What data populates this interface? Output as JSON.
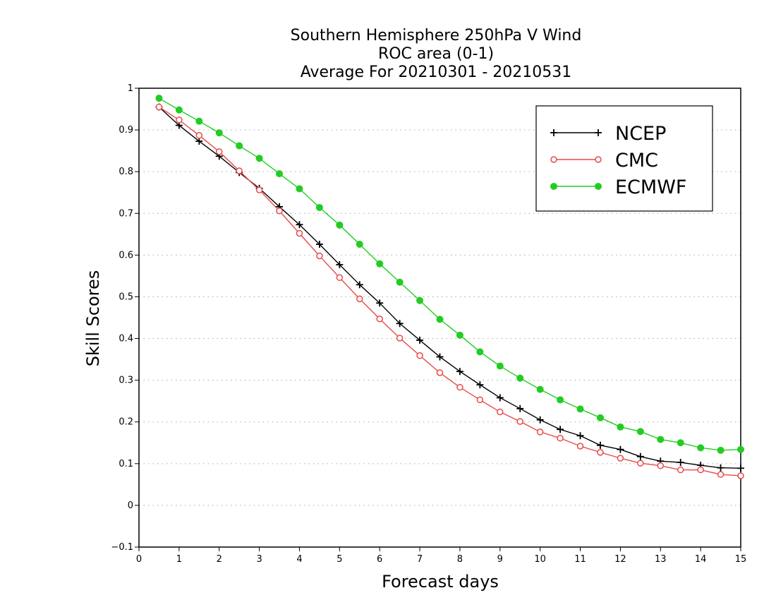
{
  "chart_data": {
    "type": "line",
    "title": [
      "Southern Hemisphere 250hPa V Wind",
      "ROC area (0-1)",
      "Average For 20210301 - 20210531"
    ],
    "xlabel": "Forecast days",
    "ylabel": "Skill Scores",
    "xlim": [
      0,
      15
    ],
    "ylim": [
      -0.1,
      1
    ],
    "x_ticks": [
      "0",
      "1",
      "2",
      "3",
      "4",
      "5",
      "6",
      "7",
      "8",
      "9",
      "10",
      "11",
      "12",
      "13",
      "14",
      "15"
    ],
    "y_ticks": [
      "−0.1",
      "0",
      "0.1",
      "0.2",
      "0.3",
      "0.4",
      "0.5",
      "0.6",
      "0.7",
      "0.8",
      "0.9",
      "1"
    ],
    "grid": "horizontal dotted",
    "legend_position": "top-right",
    "x": [
      0.5,
      1,
      1.5,
      2,
      2.5,
      3,
      3.5,
      4,
      4.5,
      5,
      5.5,
      6,
      6.5,
      7,
      7.5,
      8,
      8.5,
      9,
      9.5,
      10,
      10.5,
      11,
      11.5,
      12,
      12.5,
      13,
      13.5,
      14,
      14.5,
      15
    ],
    "series": [
      {
        "name": "NCEP",
        "color": "#000000",
        "marker": "plus",
        "values": [
          0.955,
          0.911,
          0.873,
          0.837,
          0.798,
          0.76,
          0.716,
          0.673,
          0.626,
          0.577,
          0.529,
          0.485,
          0.436,
          0.396,
          0.356,
          0.321,
          0.289,
          0.258,
          0.232,
          0.205,
          0.182,
          0.167,
          0.144,
          0.134,
          0.117,
          0.106,
          0.103,
          0.096,
          0.09,
          0.089
        ]
      },
      {
        "name": "CMC",
        "color": "#e84a4a",
        "marker": "open-circle",
        "values": [
          0.955,
          0.924,
          0.887,
          0.848,
          0.802,
          0.756,
          0.706,
          0.652,
          0.598,
          0.546,
          0.495,
          0.447,
          0.401,
          0.359,
          0.318,
          0.283,
          0.253,
          0.224,
          0.201,
          0.176,
          0.161,
          0.142,
          0.127,
          0.113,
          0.101,
          0.095,
          0.085,
          0.085,
          0.074,
          0.071
        ]
      },
      {
        "name": "ECMWF",
        "color": "#22cc22",
        "marker": "filled-circle",
        "values": [
          0.976,
          0.948,
          0.921,
          0.893,
          0.862,
          0.832,
          0.795,
          0.759,
          0.714,
          0.672,
          0.626,
          0.579,
          0.535,
          0.491,
          0.446,
          0.408,
          0.368,
          0.334,
          0.305,
          0.278,
          0.253,
          0.231,
          0.21,
          0.188,
          0.177,
          0.158,
          0.15,
          0.138,
          0.132,
          0.134
        ]
      }
    ]
  }
}
